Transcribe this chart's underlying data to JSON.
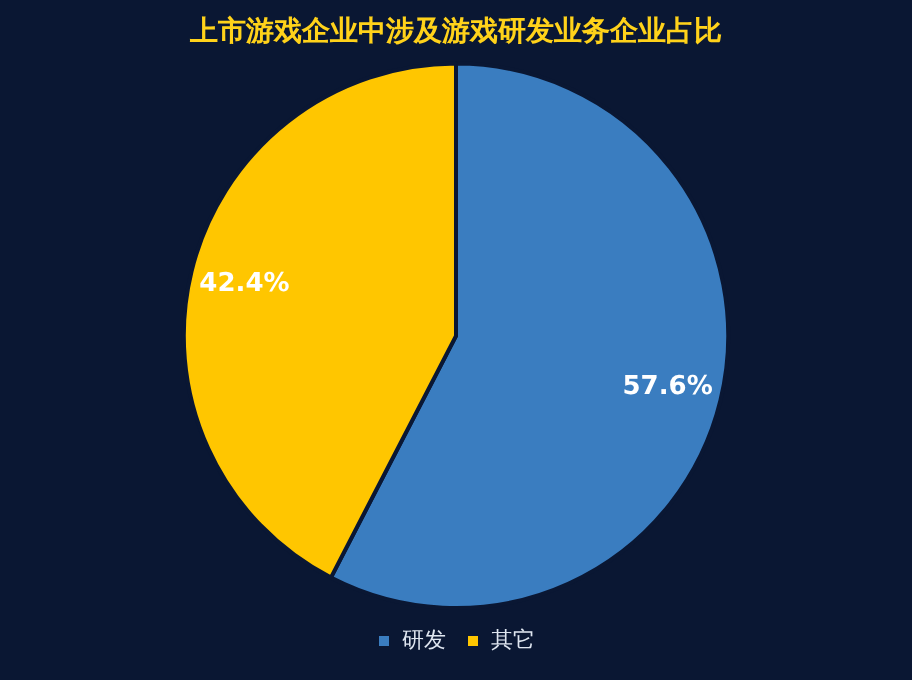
{
  "chart_data": {
    "type": "pie",
    "title": "上市游戏企业中涉及游戏研发业务企业占比",
    "categories": [
      "研发",
      "其它"
    ],
    "values": [
      57.6,
      42.4
    ],
    "colors": [
      "#3a7dc0",
      "#ffc600"
    ],
    "value_labels": [
      "57.6%",
      "42.4%"
    ],
    "legend": "bottom"
  }
}
